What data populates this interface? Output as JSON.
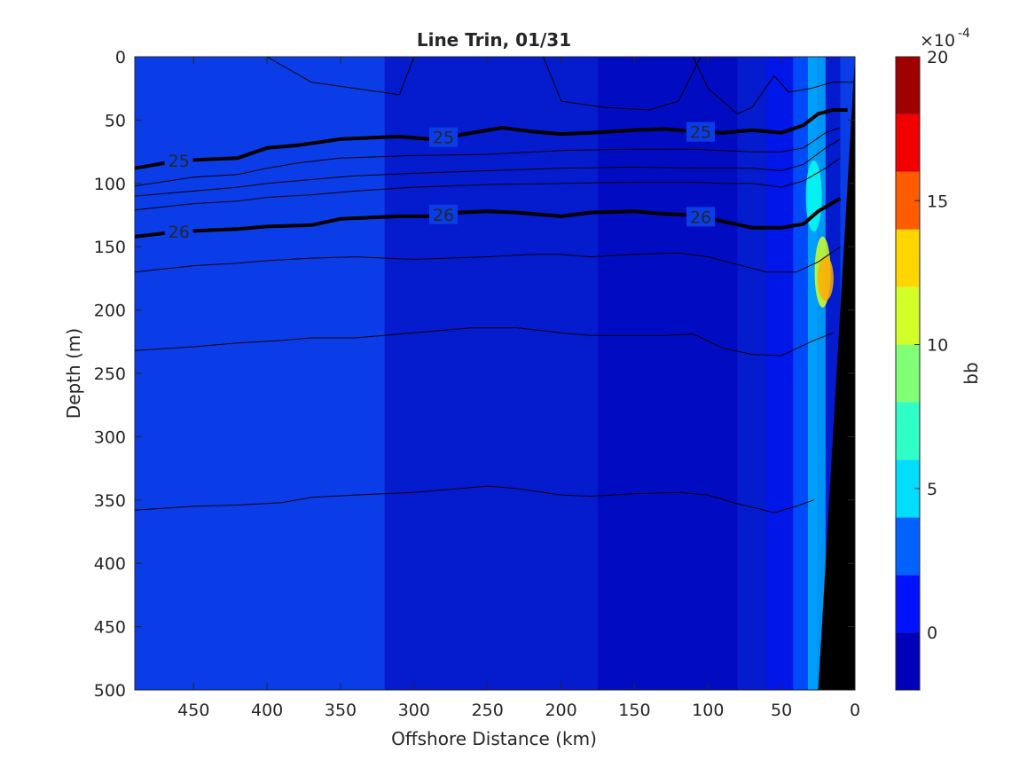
{
  "chart_data": {
    "type": "heatmap",
    "subtype": "filled contour section with density contour overlay",
    "title": "Line Trin, 01/31",
    "xlabel": "Offshore Distance (km)",
    "ylabel": "Depth (m)",
    "xlim": [
      490,
      0
    ],
    "x_reversed": true,
    "ylim": [
      0,
      500
    ],
    "y_reversed": true,
    "xticks": [
      "450",
      "400",
      "350",
      "300",
      "250",
      "200",
      "150",
      "100",
      "50",
      "0"
    ],
    "yticks": [
      "0",
      "50",
      "100",
      "150",
      "200",
      "250",
      "300",
      "350",
      "400",
      "450",
      "500"
    ],
    "grid": false,
    "colorbar": {
      "label": "bb",
      "exponent_label": "×10",
      "exponent": "-4",
      "min": -2,
      "max": 20,
      "step": 2,
      "ticks": [
        "0",
        "5",
        "10",
        "15",
        "20"
      ],
      "colormap": "jet",
      "colors": [
        "#00008f",
        "#0000b8",
        "#0000e0",
        "#0012ff",
        "#003bff",
        "#0063ff",
        "#008cff",
        "#00b4ff",
        "#00ddff",
        "#07ffef",
        "#2fffc7",
        "#58ff9f",
        "#80ff77",
        "#a8ff4f",
        "#d1ff27",
        "#f9ff00",
        "#ffd600",
        "#ffad00",
        "#ff8500",
        "#ff5c00",
        "#ff3300",
        "#f20000",
        "#c90000",
        "#a00000",
        "#800000"
      ]
    },
    "background_level_color": "#0a3de8",
    "contour_labels": [
      "25",
      "25",
      "25",
      "26",
      "26",
      "26"
    ],
    "density_contours": [
      {
        "level": "25",
        "bold": true,
        "x": [
          490,
          460,
          420,
          400,
          380,
          350,
          310,
          290,
          270,
          240,
          220,
          200,
          180,
          150,
          130,
          110,
          90,
          70,
          50,
          35,
          25,
          15,
          5
        ],
        "depth": [
          88,
          82,
          80,
          72,
          70,
          65,
          63,
          65,
          62,
          56,
          59,
          61,
          60,
          58,
          57,
          59,
          60,
          58,
          60,
          54,
          45,
          42,
          42
        ]
      },
      {
        "bold": false,
        "x": [
          490,
          450,
          420,
          400,
          380,
          350,
          300,
          250,
          200,
          150,
          110,
          90,
          70,
          50,
          35,
          20,
          10
        ],
        "depth": [
          102,
          95,
          93,
          88,
          84,
          80,
          78,
          77,
          74,
          73,
          73,
          74,
          75,
          75,
          72,
          60,
          56
        ]
      },
      {
        "bold": false,
        "x": [
          490,
          450,
          420,
          400,
          370,
          340,
          300,
          250,
          200,
          150,
          110,
          90,
          70,
          50,
          35,
          20,
          10
        ],
        "depth": [
          110,
          106,
          103,
          100,
          97,
          94,
          92,
          90,
          88,
          87,
          88,
          88,
          88,
          90,
          85,
          72,
          65
        ]
      },
      {
        "bold": false,
        "x": [
          490,
          450,
          420,
          400,
          370,
          340,
          300,
          250,
          200,
          150,
          110,
          90,
          70,
          50,
          35,
          20,
          10
        ],
        "depth": [
          121,
          116,
          114,
          111,
          109,
          106,
          103,
          101,
          100,
          99,
          99,
          100,
          100,
          103,
          98,
          88,
          80
        ]
      },
      {
        "level": "26",
        "bold": true,
        "x": [
          490,
          460,
          420,
          400,
          370,
          350,
          310,
          290,
          270,
          250,
          230,
          200,
          180,
          150,
          130,
          110,
          90,
          70,
          50,
          35,
          25,
          10
        ],
        "depth": [
          142,
          138,
          136,
          134,
          133,
          128,
          126,
          126,
          123,
          122,
          123,
          126,
          123,
          122,
          124,
          125,
          130,
          135,
          135,
          132,
          122,
          112
        ]
      },
      {
        "bold": false,
        "x": [
          490,
          450,
          420,
          400,
          370,
          340,
          300,
          250,
          220,
          200,
          180,
          150,
          120,
          100,
          80,
          60,
          40,
          25,
          10
        ],
        "depth": [
          170,
          165,
          163,
          161,
          159,
          158,
          160,
          158,
          156,
          156,
          158,
          156,
          155,
          158,
          164,
          170,
          170,
          162,
          150
        ]
      },
      {
        "bold": false,
        "x": [
          490,
          450,
          420,
          390,
          370,
          340,
          300,
          260,
          230,
          200,
          180,
          150,
          130,
          110,
          90,
          70,
          50,
          30,
          15
        ],
        "depth": [
          232,
          229,
          226,
          224,
          222,
          222,
          218,
          214,
          214,
          218,
          220,
          220,
          220,
          219,
          230,
          235,
          236,
          225,
          218
        ]
      },
      {
        "bold": false,
        "x": [
          490,
          450,
          420,
          390,
          370,
          340,
          300,
          280,
          250,
          230,
          200,
          180,
          150,
          120,
          100,
          80,
          65,
          55,
          40,
          28
        ],
        "depth": [
          358,
          355,
          354,
          352,
          348,
          346,
          344,
          342,
          339,
          341,
          346,
          347,
          345,
          344,
          346,
          353,
          357,
          360,
          355,
          350
        ]
      },
      {
        "bold": false,
        "x": [
          400,
          370,
          340,
          310,
          300
        ],
        "depth": [
          0,
          20,
          25,
          30,
          0
        ]
      },
      {
        "bold": false,
        "x": [
          212,
          200,
          170,
          140,
          120,
          105
        ],
        "depth": [
          0,
          35,
          40,
          42,
          35,
          0
        ]
      },
      {
        "bold": false,
        "x": [
          110,
          100,
          90,
          80,
          70,
          55,
          45,
          30,
          15,
          5,
          0
        ],
        "depth": [
          0,
          25,
          35,
          45,
          40,
          15,
          28,
          25,
          20,
          20,
          20
        ]
      }
    ],
    "shelf_mask": {
      "color": "#000000",
      "x": [
        0,
        0,
        25
      ],
      "depth": [
        0,
        500,
        500
      ]
    }
  }
}
